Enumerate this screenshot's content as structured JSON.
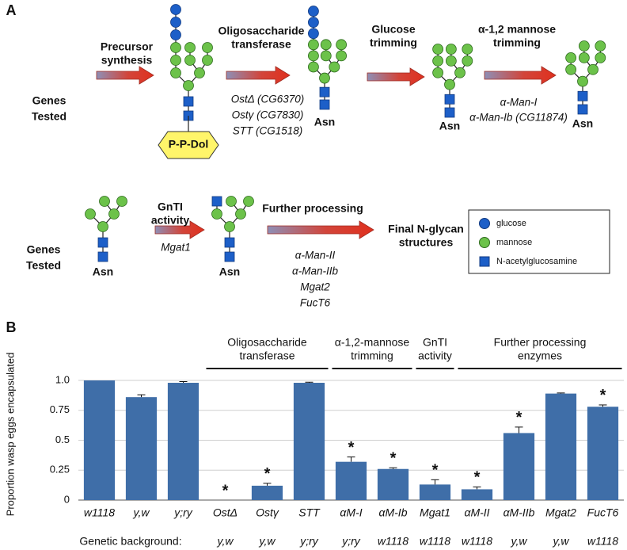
{
  "diagram": {
    "label": "A",
    "genes_label": [
      "Genes",
      "Tested"
    ],
    "asn": "Asn",
    "lipid": "P-P-Dol",
    "row1": [
      {
        "title": [
          "Precursor",
          "synthesis"
        ],
        "genes": []
      },
      {
        "title": [
          "Oligosaccharide",
          "transferase"
        ],
        "genes": [
          "OstΔ (CG6370)",
          "Ostγ (CG7830)",
          "STT (CG1518)"
        ]
      },
      {
        "title": [
          "Glucose",
          "trimming"
        ],
        "genes": []
      },
      {
        "title": [
          "α-1,2 mannose",
          "trimming"
        ],
        "genes": [
          "α-Man-I",
          "α-Man-Ib (CG11874)"
        ]
      }
    ],
    "row2": [
      {
        "title": [
          "GnTI",
          "activity"
        ],
        "genes": [
          "Mgat1"
        ]
      },
      {
        "title": [
          "Further processing"
        ],
        "genes": [
          "α-Man-II",
          "α-Man-IIb",
          "Mgat2",
          "FucT6"
        ]
      }
    ],
    "final": [
      "Final N-glycan",
      "structures"
    ],
    "legend": [
      "glucose",
      "mannose",
      "N-acetylglucosamine"
    ]
  },
  "panel_b_label": "B",
  "chart_data": {
    "type": "bar",
    "ylabel": "Proportion wasp eggs encapsulated",
    "categories": [
      "w1118",
      "y,w",
      "y;ry",
      "OstΔ",
      "Ostγ",
      "STT",
      "αM-I",
      "αM-Ib",
      "Mgat1",
      "αM-II",
      "αM-IIb",
      "Mgat2",
      "FucT6"
    ],
    "values": [
      1.0,
      0.86,
      0.98,
      0,
      0.12,
      0.98,
      0.32,
      0.26,
      0.13,
      0.09,
      0.56,
      0.89,
      0.78
    ],
    "errors": [
      null,
      0.02,
      0.01,
      null,
      0.02,
      0.005,
      0.04,
      0.01,
      0.04,
      0.02,
      0.05,
      0.005,
      0.015
    ],
    "significance": [
      null,
      null,
      null,
      "*",
      "*",
      null,
      "*",
      "*",
      "*",
      "*",
      "*",
      null,
      "*"
    ],
    "color": "#3f6ea8",
    "ylim": [
      0,
      1
    ],
    "yticks": [
      0,
      0.25,
      0.5,
      0.75,
      {
        "value": 1,
        "label": "1.0"
      }
    ],
    "grid": true,
    "background_label": "Genetic background:",
    "backgrounds": [
      null,
      null,
      null,
      "y,w",
      "y,w",
      "y;ry",
      "y;ry",
      "w1118",
      "w1118",
      "w1118",
      "y,w",
      "y,w",
      "w1118"
    ],
    "groups": [
      {
        "label": [
          "Oligosaccharide",
          "transferase"
        ],
        "members": [
          "OstΔ",
          "Ostγ",
          "STT"
        ]
      },
      {
        "label": [
          "α-1,2-mannose",
          "trimming"
        ],
        "members": [
          "αM-I",
          "αM-Ib"
        ]
      },
      {
        "label": [
          "GnTI",
          "activity"
        ],
        "members": [
          "Mgat1"
        ]
      },
      {
        "label": [
          "Further processing",
          "enzymes"
        ],
        "members": [
          "αM-II",
          "αM-IIb",
          "Mgat2",
          "FucT6"
        ]
      }
    ]
  }
}
